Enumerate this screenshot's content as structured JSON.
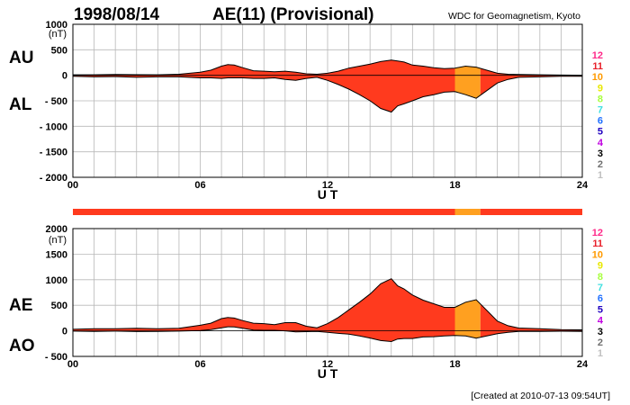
{
  "header": {
    "date": "1998/08/14",
    "title": "AE(11) (Provisional)",
    "source": "WDC for Geomagnetism, Kyoto"
  },
  "footer": {
    "created": "[Created at 2010-07-13 09:54UT]"
  },
  "scale_legend": {
    "levels": [
      "12",
      "11",
      "10",
      "9",
      "8",
      "7",
      "6",
      "5",
      "4",
      "3",
      "2",
      "1"
    ],
    "colors": [
      "#ff2a8a",
      "#e8202a",
      "#ff9a00",
      "#e8e800",
      "#a8ff40",
      "#40e0e0",
      "#2070ff",
      "#2000c0",
      "#c000e0",
      "#000000",
      "#707070",
      "#c0c0c0"
    ]
  },
  "segment_colors": {
    "normal": "#ff3a1e",
    "highlight": "#ffa020"
  },
  "chart_data": [
    {
      "type": "area",
      "panel": "AU-AL",
      "left_labels": [
        "AU",
        "AL"
      ],
      "unit": "(nT)",
      "xlabel": "U T",
      "x_ticks": [
        "00",
        "06",
        "12",
        "18",
        "24"
      ],
      "xlim": [
        0,
        24
      ],
      "ylim": [
        -2000,
        1000
      ],
      "y_ticks": [
        "1000",
        "500",
        "0",
        "- 500",
        "- 1000",
        "- 1500",
        "- 2000"
      ],
      "y_tick_values": [
        1000,
        500,
        0,
        -500,
        -1000,
        -1500,
        -2000
      ],
      "grid": true,
      "highlight_interval_hours": [
        18.0,
        19.2
      ],
      "series": [
        {
          "name": "AU",
          "x": [
            0,
            1,
            2,
            3,
            4,
            5,
            6,
            6.5,
            7,
            7.3,
            7.6,
            8,
            8.5,
            9,
            9.5,
            10,
            10.5,
            11,
            11.5,
            12,
            12.5,
            13,
            13.5,
            14,
            14.5,
            15,
            15.3,
            15.6,
            16,
            16.5,
            17,
            17.5,
            18,
            18.5,
            19,
            19.5,
            20,
            20.5,
            21,
            22,
            23,
            24
          ],
          "values": [
            10,
            10,
            15,
            12,
            10,
            20,
            60,
            100,
            180,
            210,
            200,
            150,
            90,
            80,
            70,
            80,
            60,
            30,
            20,
            40,
            80,
            140,
            180,
            220,
            270,
            300,
            280,
            260,
            200,
            180,
            150,
            130,
            140,
            180,
            160,
            100,
            40,
            20,
            15,
            10,
            5,
            0
          ]
        },
        {
          "name": "AL",
          "x": [
            0,
            1,
            2,
            3,
            4,
            5,
            6,
            6.5,
            7,
            7.3,
            7.6,
            8,
            8.5,
            9,
            9.5,
            10,
            10.5,
            11,
            11.5,
            12,
            12.5,
            13,
            13.5,
            14,
            14.5,
            15,
            15.3,
            15.6,
            16,
            16.5,
            17,
            17.5,
            18,
            18.5,
            19,
            19.5,
            20,
            20.5,
            21,
            22,
            23,
            24
          ],
          "values": [
            -20,
            -30,
            -25,
            -40,
            -30,
            -30,
            -50,
            -50,
            -60,
            -50,
            -50,
            -50,
            -60,
            -60,
            -50,
            -80,
            -100,
            -60,
            -40,
            -100,
            -180,
            -270,
            -380,
            -500,
            -650,
            -720,
            -600,
            -560,
            -500,
            -420,
            -380,
            -330,
            -320,
            -380,
            -450,
            -300,
            -150,
            -80,
            -40,
            -30,
            -20,
            -20
          ]
        }
      ]
    },
    {
      "type": "area",
      "panel": "AE-AO",
      "left_labels": [
        "AE",
        "AO"
      ],
      "unit": "(nT)",
      "xlabel": "U T",
      "x_ticks": [
        "00",
        "06",
        "12",
        "18",
        "24"
      ],
      "xlim": [
        0,
        24
      ],
      "ylim": [
        -500,
        2000
      ],
      "y_ticks": [
        "2000",
        "1500",
        "1000",
        "500",
        "0",
        "- 500"
      ],
      "y_tick_values": [
        2000,
        1500,
        1000,
        500,
        0,
        -500
      ],
      "grid": true,
      "highlight_interval_hours": [
        18.0,
        19.2
      ],
      "series": [
        {
          "name": "AE",
          "x": [
            0,
            1,
            2,
            3,
            4,
            5,
            6,
            6.5,
            7,
            7.3,
            7.6,
            8,
            8.5,
            9,
            9.5,
            10,
            10.5,
            11,
            11.5,
            12,
            12.5,
            13,
            13.5,
            14,
            14.5,
            15,
            15.3,
            15.6,
            16,
            16.5,
            17,
            17.5,
            18,
            18.5,
            19,
            19.5,
            20,
            20.5,
            21,
            22,
            23,
            24
          ],
          "values": [
            30,
            40,
            40,
            50,
            40,
            50,
            110,
            150,
            240,
            260,
            250,
            200,
            150,
            140,
            120,
            160,
            160,
            90,
            60,
            140,
            260,
            410,
            560,
            720,
            920,
            1020,
            880,
            820,
            700,
            600,
            530,
            460,
            460,
            560,
            610,
            400,
            190,
            100,
            55,
            40,
            25,
            20
          ]
        },
        {
          "name": "AO",
          "x": [
            0,
            1,
            2,
            3,
            4,
            5,
            6,
            6.5,
            7,
            7.3,
            7.6,
            8,
            8.5,
            9,
            9.5,
            10,
            10.5,
            11,
            11.5,
            12,
            12.5,
            13,
            13.5,
            14,
            14.5,
            15,
            15.3,
            15.6,
            16,
            16.5,
            17,
            17.5,
            18,
            18.5,
            19,
            19.5,
            20,
            20.5,
            21,
            22,
            23,
            24
          ],
          "values": [
            -5,
            -10,
            -5,
            -14,
            -10,
            -5,
            5,
            25,
            60,
            80,
            75,
            50,
            15,
            10,
            10,
            0,
            -20,
            -15,
            -10,
            -30,
            -50,
            -65,
            -100,
            -140,
            -190,
            -210,
            -160,
            -150,
            -150,
            -120,
            -115,
            -100,
            -90,
            -100,
            -145,
            -100,
            -55,
            -30,
            -12,
            -10,
            -7,
            -10
          ]
        }
      ]
    }
  ]
}
